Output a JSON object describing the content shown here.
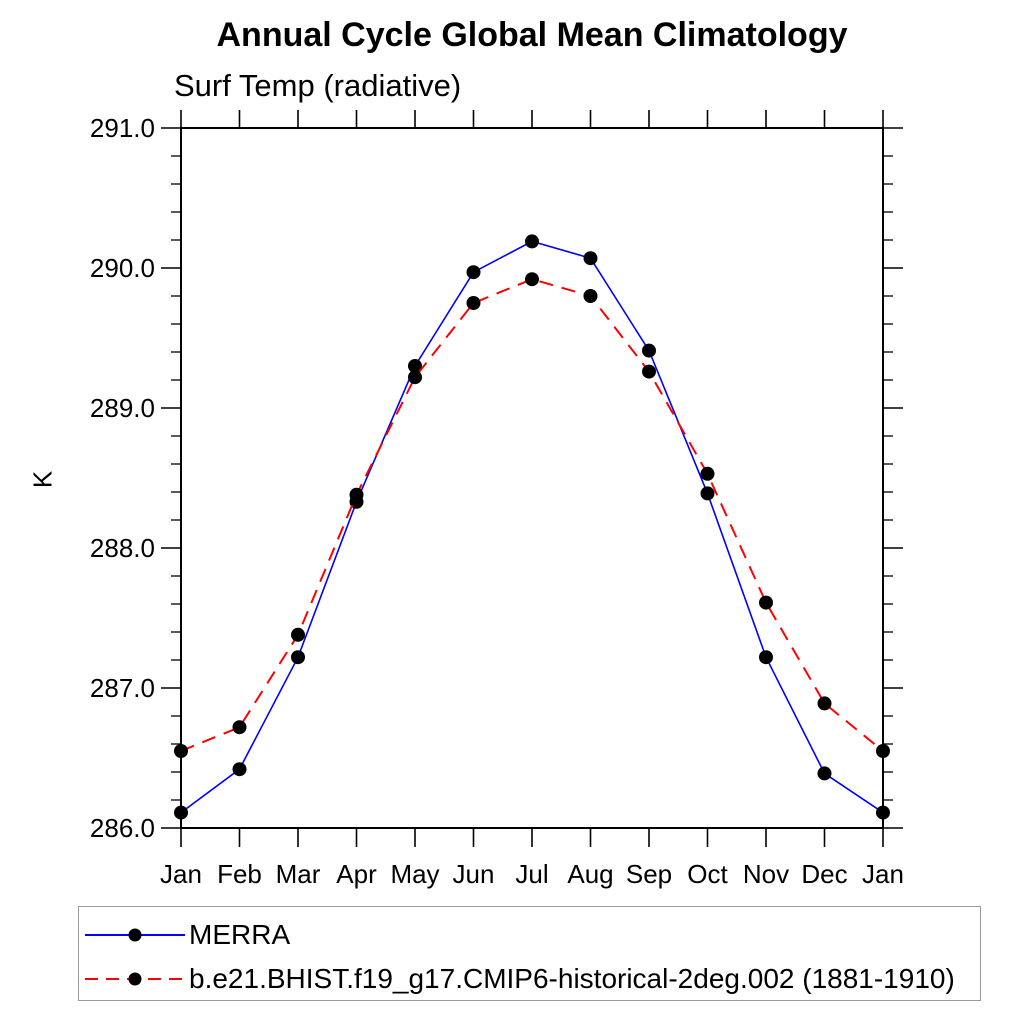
{
  "chart_data": {
    "type": "line",
    "title": "Annual Cycle Global Mean Climatology",
    "subtitle": "Surf Temp (radiative)",
    "xlabel": "",
    "ylabel": "K",
    "x_categories": [
      "Jan",
      "Feb",
      "Mar",
      "Apr",
      "May",
      "Jun",
      "Jul",
      "Aug",
      "Sep",
      "Oct",
      "Nov",
      "Dec",
      "Jan"
    ],
    "ylim": [
      286.0,
      291.0
    ],
    "ytick_major": [
      286.0,
      287.0,
      288.0,
      289.0,
      290.0,
      291.0
    ],
    "ytick_labels": [
      "286.0",
      "287.0",
      "288.0",
      "289.0",
      "290.0",
      "291.0"
    ],
    "ytick_minor_step": 0.2,
    "grid": false,
    "legend_position": "bottom-left",
    "axis_color": "#000000",
    "marker_shape": "filled-circle",
    "series": [
      {
        "name": "MERRA",
        "color": "#0000ff",
        "style": "solid",
        "marker_color": "#000000",
        "values": [
          286.11,
          286.42,
          287.22,
          288.33,
          289.3,
          289.97,
          290.19,
          290.07,
          289.41,
          288.39,
          287.22,
          286.39,
          286.11
        ]
      },
      {
        "name": "b.e21.BHIST.f19_g17.CMIP6-historical-2deg.002 (1881-1910)",
        "color": "#ff0000",
        "style": "dashed",
        "marker_color": "#000000",
        "values": [
          286.55,
          286.72,
          287.38,
          288.38,
          289.22,
          289.75,
          289.92,
          289.8,
          289.26,
          288.53,
          287.61,
          286.89,
          286.55
        ]
      }
    ]
  }
}
